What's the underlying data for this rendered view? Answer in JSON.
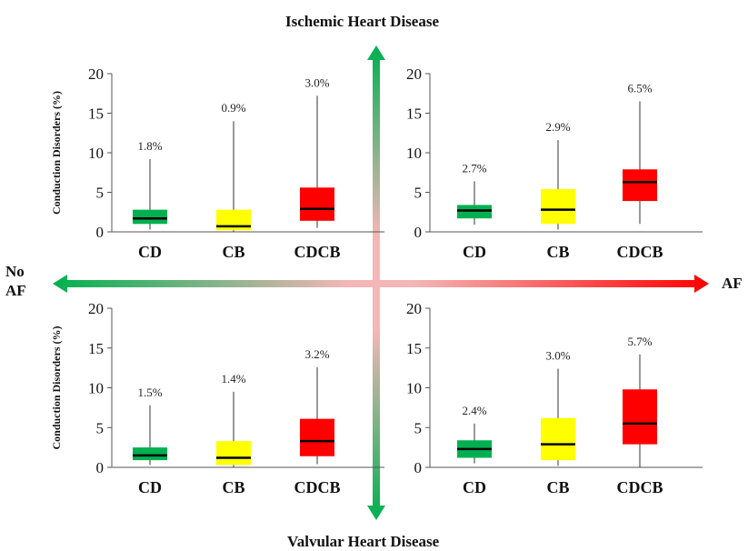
{
  "labels": {
    "top": "Ischemic Heart Disease",
    "bottom": "Valvular Heart Disease",
    "left_line1": "No",
    "left_line2": "AF",
    "right": "AF"
  },
  "colors": {
    "CD": "#00b050",
    "CB": "#ffff00",
    "CDCB": "#ff0000",
    "median": "#000000",
    "arrow_green": "#00b050",
    "arrow_pink": "#f4b6b6",
    "arrow_red": "#ff0000"
  },
  "chart_data": [
    {
      "type": "boxplot",
      "panel": "top-left",
      "ylabel": "Conduction Disorders (%)",
      "ylim": [
        0,
        20
      ],
      "yticks": [
        0,
        5,
        10,
        15,
        20
      ],
      "categories": [
        "CD",
        "CB",
        "CDCB"
      ],
      "boxes": [
        {
          "category": "CD",
          "min": 0.3,
          "q1": 1.0,
          "median": 1.7,
          "q3": 2.8,
          "max": 9.2,
          "label": "1.8%"
        },
        {
          "category": "CB",
          "min": 0.0,
          "q1": 0.2,
          "median": 0.7,
          "q3": 2.8,
          "max": 14.0,
          "label": "0.9%"
        },
        {
          "category": "CDCB",
          "min": 0.5,
          "q1": 1.4,
          "median": 2.9,
          "q3": 5.6,
          "max": 17.2,
          "label": "3.0%"
        }
      ]
    },
    {
      "type": "boxplot",
      "panel": "top-right",
      "ylabel": "",
      "ylim": [
        0,
        20
      ],
      "yticks": [
        0,
        5,
        10,
        15,
        20
      ],
      "categories": [
        "CD",
        "CB",
        "CDCB"
      ],
      "boxes": [
        {
          "category": "CD",
          "min": 0.9,
          "q1": 1.7,
          "median": 2.7,
          "q3": 3.4,
          "max": 6.4,
          "label": "2.7%"
        },
        {
          "category": "CB",
          "min": 0.3,
          "q1": 1.0,
          "median": 2.8,
          "q3": 5.4,
          "max": 11.6,
          "label": "2.9%"
        },
        {
          "category": "CDCB",
          "min": 1.0,
          "q1": 3.9,
          "median": 6.3,
          "q3": 7.9,
          "max": 16.5,
          "label": "6.5%"
        }
      ]
    },
    {
      "type": "boxplot",
      "panel": "bottom-left",
      "ylabel": "Conduction Disorders (%)",
      "ylim": [
        0,
        20
      ],
      "yticks": [
        0,
        5,
        10,
        15,
        20
      ],
      "categories": [
        "CD",
        "CB",
        "CDCB"
      ],
      "boxes": [
        {
          "category": "CD",
          "min": 0.3,
          "q1": 0.9,
          "median": 1.5,
          "q3": 2.5,
          "max": 7.8,
          "label": "1.5%"
        },
        {
          "category": "CB",
          "min": 0.0,
          "q1": 0.3,
          "median": 1.2,
          "q3": 3.3,
          "max": 9.5,
          "label": "1.4%"
        },
        {
          "category": "CDCB",
          "min": 0.4,
          "q1": 1.4,
          "median": 3.3,
          "q3": 6.1,
          "max": 12.6,
          "label": "3.2%"
        }
      ]
    },
    {
      "type": "boxplot",
      "panel": "bottom-right",
      "ylabel": "",
      "ylim": [
        0,
        20
      ],
      "yticks": [
        0,
        5,
        10,
        15,
        20
      ],
      "categories": [
        "CD",
        "CB",
        "CDCB"
      ],
      "boxes": [
        {
          "category": "CD",
          "min": 0.5,
          "q1": 1.2,
          "median": 2.3,
          "q3": 3.4,
          "max": 5.5,
          "label": "2.4%"
        },
        {
          "category": "CB",
          "min": 0.2,
          "q1": 0.9,
          "median": 2.9,
          "q3": 6.2,
          "max": 12.4,
          "label": "3.0%"
        },
        {
          "category": "CDCB",
          "min": 0.0,
          "q1": 2.9,
          "median": 5.5,
          "q3": 9.8,
          "max": 14.2,
          "label": "5.7%"
        }
      ]
    }
  ]
}
